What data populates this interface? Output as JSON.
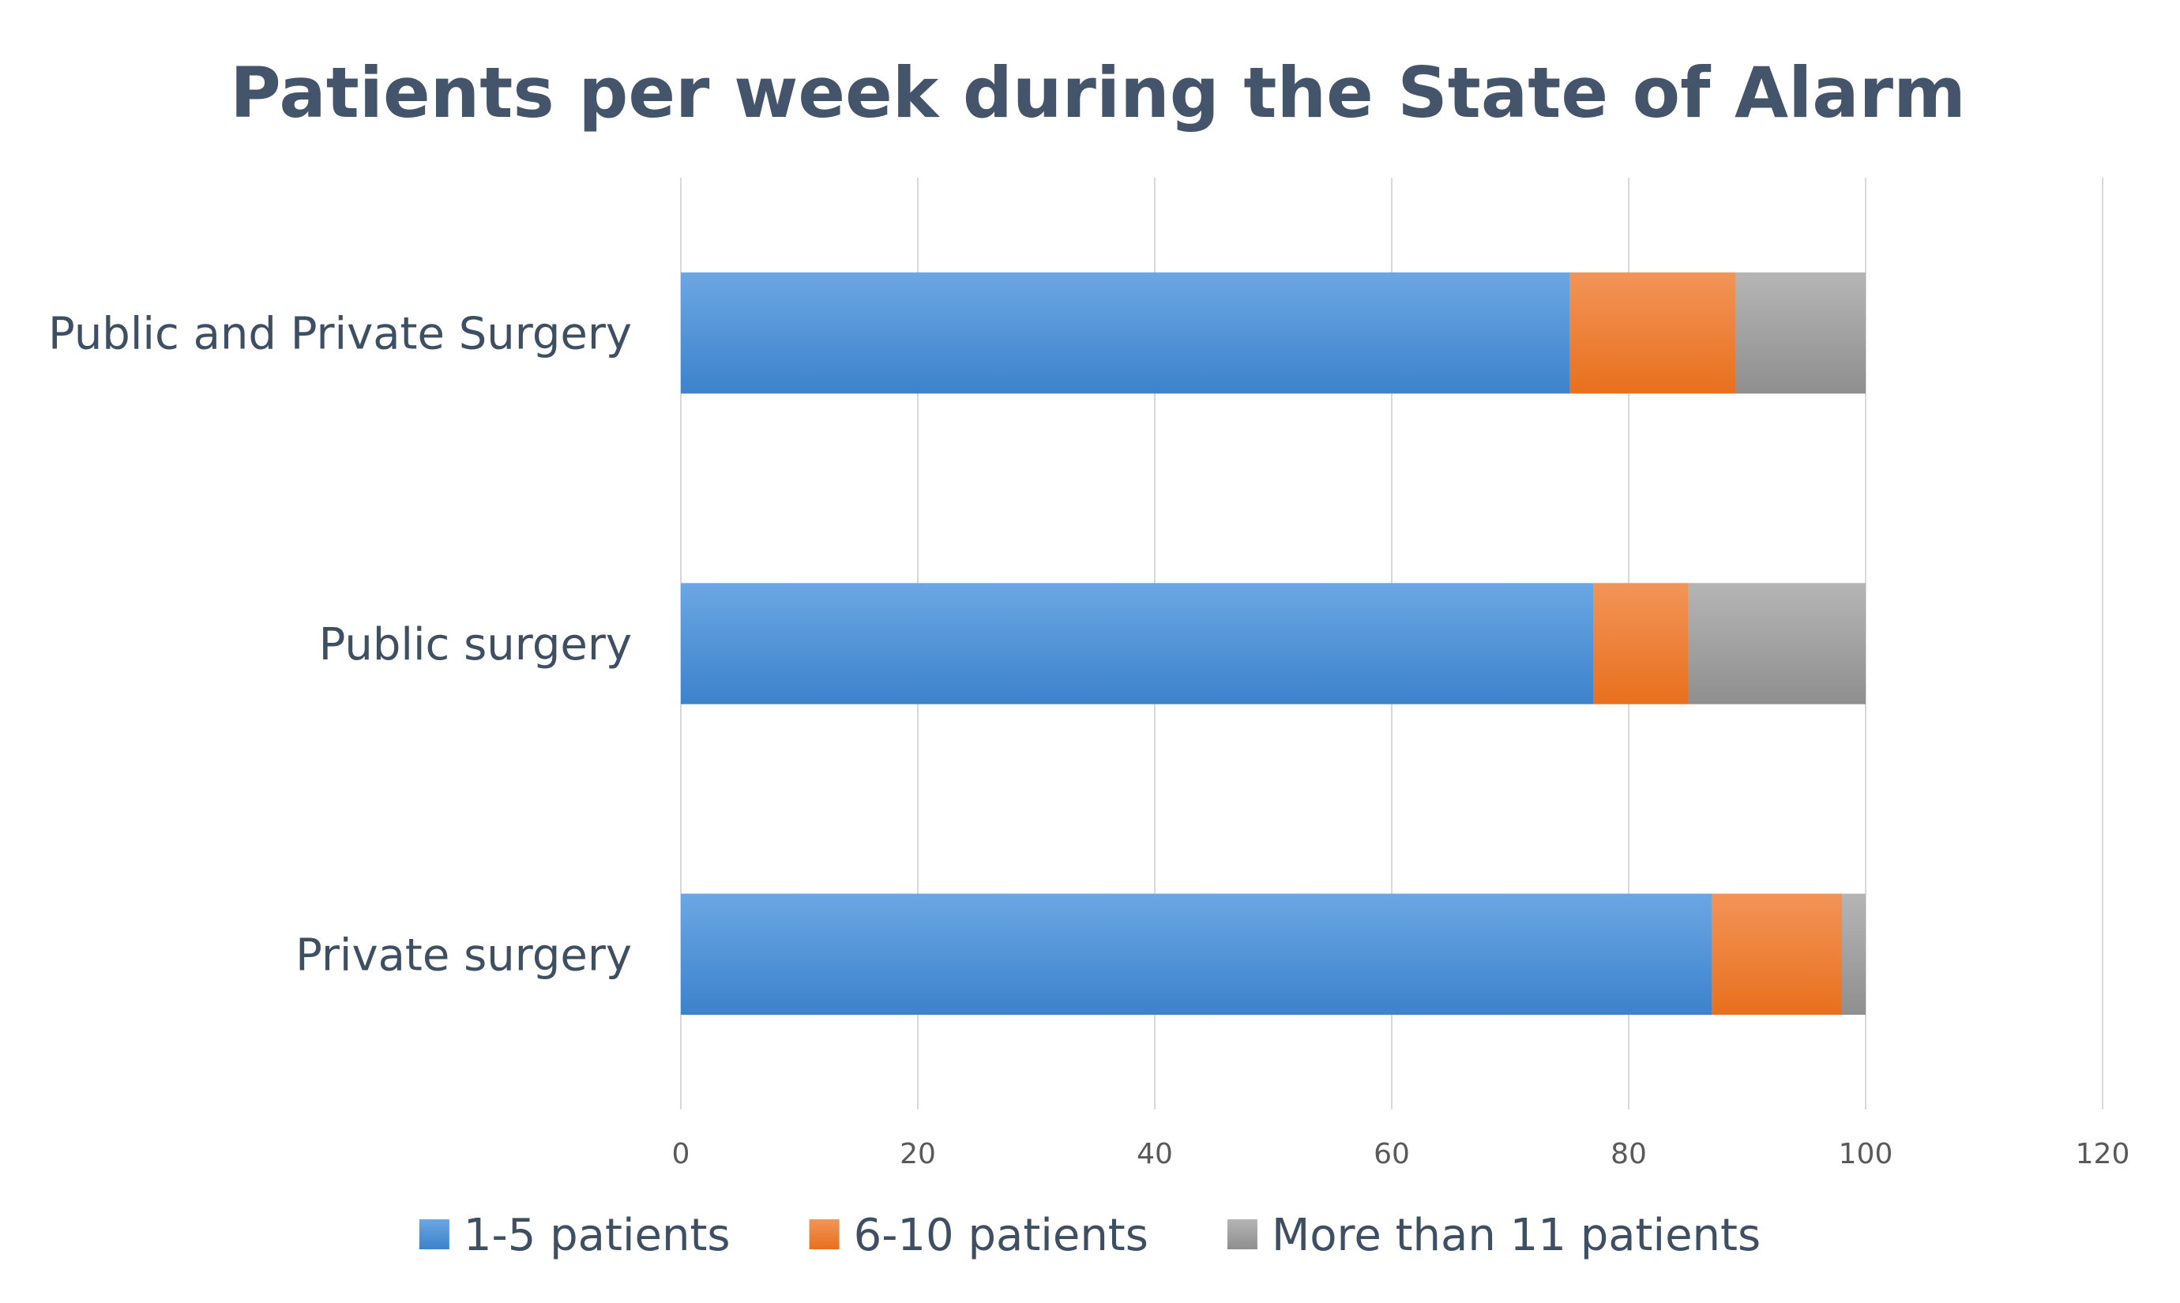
{
  "chart_data": {
    "type": "bar",
    "orientation": "horizontal",
    "stacked": true,
    "title": "Patients per week during the State of Alarm",
    "categories": [
      "Public and Private Surgery",
      "Public surgery",
      "Private surgery"
    ],
    "series": [
      {
        "name": "1-5 patients",
        "color": "#4a8fd6",
        "values": [
          75,
          77,
          87
        ]
      },
      {
        "name": "6-10 patients",
        "color": "#ed7d31",
        "values": [
          14,
          8,
          11
        ]
      },
      {
        "name": "More than 11 patients",
        "color": "#a5a5a5",
        "values": [
          11,
          15,
          2
        ]
      }
    ],
    "xlim": [
      0,
      120
    ],
    "xticks": [
      0,
      20,
      40,
      60,
      80,
      100,
      120
    ],
    "xtick_labels": [
      "0",
      "20",
      "40",
      "60",
      "80",
      "100",
      "120"
    ],
    "grid": true,
    "legend": "bottom"
  }
}
